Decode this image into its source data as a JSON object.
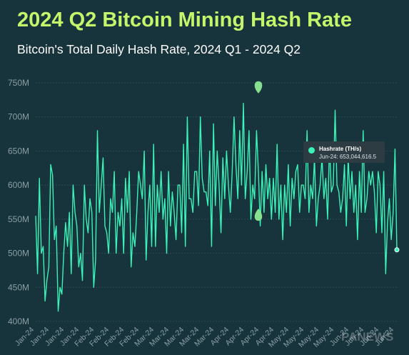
{
  "title": "2024 Q2 Bitcoin Mining Hash Rate",
  "subtitle": "Bitcoin's Total Daily Hash Rate, 2024 Q1 - 2024 Q2",
  "colors": {
    "background": "#17333b",
    "title": "#c5f56b",
    "line": "#3bf2b8",
    "marker": "#86e08f",
    "gridline": "#2f4a52",
    "axis_text": "#8c9fa6",
    "tooltip_bg": "#2d3c42"
  },
  "tooltip": {
    "series": "Hashrate (TH/s)",
    "value": "Jun-24: 653,044,616.5"
  },
  "watermark": "PANEWS",
  "chart_data": {
    "type": "line",
    "y_tick_labels": [
      "750M",
      "700M",
      "650M",
      "600M",
      "550M",
      "500M",
      "450M",
      "400M"
    ],
    "y_tick_values": [
      750,
      700,
      650,
      600,
      550,
      500,
      450,
      400
    ],
    "ylim": [
      400,
      765
    ],
    "y_unit": "M TH/s",
    "x_tick_labels": [
      "Jan-24",
      "Jan-24",
      "Jan-24",
      "Jan-24",
      "Feb-24",
      "Feb-24",
      "Feb-24",
      "Feb-24",
      "Mar-24",
      "Mar-24",
      "Mar-24",
      "Mar-24",
      "Mar-24",
      "Apr-24",
      "Apr-24",
      "Apr-24",
      "Apr-24",
      "May-24",
      "May-24",
      "May-24",
      "May-24",
      "Jun-24",
      "Jun-24",
      "Jun-24",
      "Jun-24"
    ],
    "annotations": [
      {
        "type": "marker",
        "shape": "pin-up",
        "x_label": "Apr-24",
        "value": 745
      },
      {
        "type": "marker",
        "shape": "pin-down",
        "x_label": "Apr-24",
        "value": 555
      }
    ],
    "series": [
      {
        "name": "Hashrate (TH/s)",
        "values": [
          555,
          470,
          610,
          500,
          510,
          430,
          460,
          480,
          630,
          615,
          520,
          540,
          415,
          450,
          440,
          500,
          545,
          510,
          560,
          470,
          600,
          560,
          540,
          480,
          500,
          460,
          600,
          550,
          530,
          580,
          560,
          450,
          490,
          680,
          560,
          600,
          640,
          540,
          530,
          500,
          580,
          560,
          620,
          500,
          560,
          540,
          580,
          500,
          610,
          560,
          620,
          480,
          530,
          510,
          560,
          620,
          600,
          580,
          650,
          490,
          560,
          600,
          510,
          660,
          510,
          600,
          560,
          620,
          550,
          580,
          500,
          620,
          540,
          590,
          560,
          520,
          600,
          600,
          530,
          660,
          510,
          700,
          580,
          580,
          560,
          620,
          620,
          570,
          700,
          610,
          590,
          590,
          570,
          650,
          510,
          690,
          570,
          650,
          600,
          530,
          640,
          580,
          650,
          600,
          560,
          620,
          700,
          630,
          580,
          680,
          600,
          720,
          580,
          620,
          680,
          550,
          600,
          580,
          680,
          620,
          540,
          620,
          560,
          630,
          580,
          610,
          550,
          610,
          560,
          660,
          550,
          600,
          520,
          600,
          560,
          630,
          540,
          610,
          580,
          620,
          630,
          560,
          600,
          600,
          580,
          680,
          560,
          600,
          580,
          640,
          540,
          580,
          600,
          640,
          580,
          610,
          550,
          660,
          590,
          600,
          710,
          600,
          590,
          560,
          580,
          630,
          540,
          640,
          580,
          620,
          560,
          600,
          520,
          620,
          560,
          680,
          560,
          580,
          620,
          600,
          620,
          590,
          530,
          620,
          600,
          530,
          620,
          470,
          545,
          580,
          520,
          560,
          653,
          505
        ]
      }
    ]
  }
}
